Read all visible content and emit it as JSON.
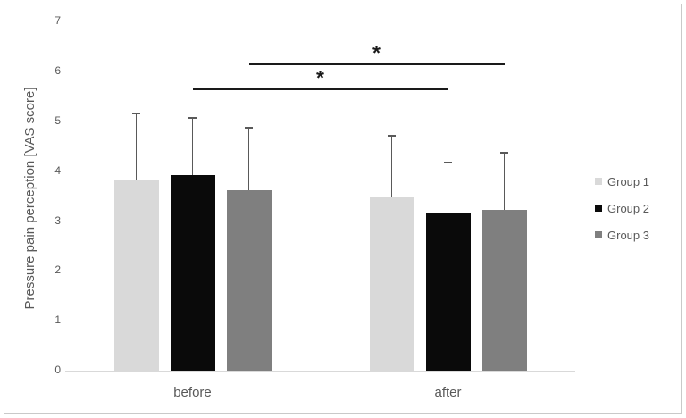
{
  "chart_data": {
    "type": "bar",
    "title": "",
    "ylabel": "Pressure pain perception [VAS score]",
    "xlabel": "",
    "categories": [
      "before",
      "after"
    ],
    "ylim": [
      0,
      7
    ],
    "y_ticks": [
      0,
      1,
      2,
      3,
      4,
      5,
      6,
      7
    ],
    "grid": false,
    "legend_position": "right",
    "series": [
      {
        "name": "Group 1",
        "color": "#d9d9d9",
        "values": [
          3.8,
          3.45
        ],
        "error_plus": [
          1.35,
          1.25
        ]
      },
      {
        "name": "Group 2",
        "color": "#0a0a0a",
        "values": [
          3.9,
          3.15
        ],
        "error_plus": [
          1.15,
          1.0
        ]
      },
      {
        "name": "Group 3",
        "color": "#7f7f7f",
        "values": [
          3.6,
          3.2
        ],
        "error_plus": [
          1.25,
          1.15
        ]
      }
    ],
    "significance_markers": [
      {
        "label": "*",
        "series": "Group 2",
        "from_category": "before",
        "to_category": "after",
        "y_value": 5.65
      },
      {
        "label": "*",
        "series": "Group 3",
        "from_category": "before",
        "to_category": "after",
        "y_value": 6.15
      }
    ],
    "colors": {
      "error_bar": "#595959",
      "axis_line": "#d9d9d9",
      "tick_label": "#595959",
      "axis_title": "#595959",
      "significance": "#1a1a1a",
      "figure_border": "#c9c9c9",
      "background": "#ffffff"
    }
  }
}
